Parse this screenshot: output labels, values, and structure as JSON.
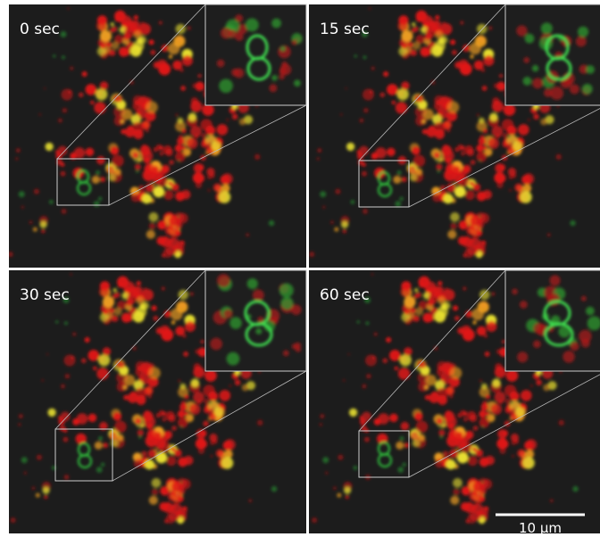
{
  "panels": [
    {
      "label": "0 sec"
    },
    {
      "label": "15 sec"
    },
    {
      "label": "30 sec"
    },
    {
      "label": "60 sec"
    }
  ],
  "scale_bar": {
    "label": "10 µm"
  }
}
